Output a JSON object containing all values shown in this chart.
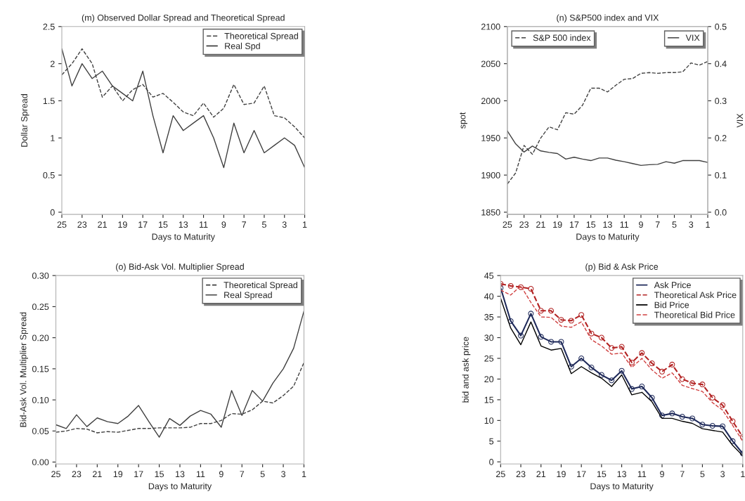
{
  "chart_data": [
    {
      "type": "line",
      "title": "(m) Observed Dollar Spread and Theoretical Spread",
      "xlabel": "Days to Maturity",
      "ylabel": "Dollar Spread",
      "x": [
        25,
        24,
        23,
        22,
        21,
        20,
        19,
        18,
        17,
        16,
        15,
        14,
        13,
        12,
        11,
        10,
        9,
        8,
        7,
        6,
        5,
        4,
        3,
        2,
        1
      ],
      "xlim": [
        25,
        1
      ],
      "xticks": [
        25,
        23,
        21,
        19,
        17,
        15,
        13,
        11,
        9,
        7,
        5,
        3,
        1
      ],
      "ylim": [
        -0.03,
        2.5
      ],
      "yticks": [
        0,
        0.5,
        1,
        1.5,
        2,
        2.5
      ],
      "legend": "top right",
      "grid": false,
      "series": [
        {
          "name": "Theoretical Spread",
          "color": "#404040",
          "line_style": "dashed",
          "values": [
            1.85,
            2.0,
            2.2,
            2.0,
            1.55,
            1.7,
            1.5,
            1.65,
            1.72,
            1.55,
            1.6,
            1.48,
            1.35,
            1.3,
            1.47,
            1.28,
            1.4,
            1.72,
            1.45,
            1.47,
            1.7,
            1.3,
            1.27,
            1.15,
            1.0
          ]
        },
        {
          "name": "Real Spd",
          "color": "#404040",
          "line_style": "solid",
          "values": [
            2.2,
            1.7,
            2.0,
            1.8,
            1.9,
            1.7,
            1.6,
            1.5,
            1.9,
            1.3,
            0.8,
            1.3,
            1.1,
            1.2,
            1.3,
            1.0,
            0.6,
            1.2,
            0.8,
            1.1,
            0.8,
            0.9,
            1.0,
            0.9,
            0.6
          ]
        }
      ]
    },
    {
      "type": "line",
      "title": "(n) S&P500 index and VIX",
      "xlabel": "Days to Maturity",
      "ylabel": "spot",
      "y2label": "VIX",
      "x": [
        25,
        24,
        23,
        22,
        21,
        20,
        19,
        18,
        17,
        16,
        15,
        14,
        13,
        12,
        11,
        10,
        9,
        8,
        7,
        6,
        5,
        4,
        3,
        2,
        1
      ],
      "xlim": [
        25,
        1
      ],
      "xticks": [
        25,
        23,
        21,
        19,
        17,
        15,
        13,
        11,
        9,
        7,
        5,
        3,
        1
      ],
      "ylim": [
        1847,
        2100
      ],
      "yticks": [
        1850,
        1900,
        1950,
        2000,
        2050,
        2100
      ],
      "y2lim": [
        -0.006,
        0.5
      ],
      "y2ticks": [
        {
          "value": 0,
          "label": "0.0"
        },
        {
          "value": 0.1,
          "label": "0.1"
        },
        {
          "value": 0.2,
          "label": "0.2"
        },
        {
          "value": 0.3,
          "label": "0.3"
        },
        {
          "value": 0.4,
          "label": "0.4"
        },
        {
          "value": 0.5,
          "label": "0.5"
        }
      ],
      "legend": "top",
      "grid": false,
      "series": [
        {
          "name": "S&P 500 index",
          "color": "#404040",
          "line_style": "dashed",
          "values": [
            1888,
            1903,
            1940,
            1928,
            1950,
            1965,
            1961,
            1984,
            1982,
            1994,
            2017,
            2017,
            2012,
            2021,
            2029,
            2030,
            2037,
            2038,
            2037,
            2038,
            2038,
            2039,
            2051,
            2048,
            2053
          ]
        },
        {
          "name": "VIX",
          "color": "#404040",
          "line_style": "solid",
          "axis": "y2",
          "values": [
            0.219,
            0.184,
            0.162,
            0.178,
            0.165,
            0.161,
            0.158,
            0.143,
            0.148,
            0.143,
            0.139,
            0.146,
            0.146,
            0.14,
            0.136,
            0.131,
            0.126,
            0.128,
            0.129,
            0.136,
            0.132,
            0.139,
            0.139,
            0.139,
            0.134
          ]
        }
      ]
    },
    {
      "type": "line",
      "title": "(o) Bid-Ask Vol. Multiplier Spread",
      "xlabel": "Days to Maturity",
      "ylabel": "Bid-Ask Vol. Multiplier Spread",
      "x": [
        25,
        24,
        23,
        22,
        21,
        20,
        19,
        18,
        17,
        16,
        15,
        14,
        13,
        12,
        11,
        10,
        9,
        8,
        7,
        6,
        5,
        4,
        3,
        2,
        1
      ],
      "xlim": [
        25,
        1
      ],
      "xticks": [
        25,
        23,
        21,
        19,
        17,
        15,
        13,
        11,
        9,
        7,
        5,
        3,
        1
      ],
      "ylim": [
        -0.003,
        0.3
      ],
      "yticks": [
        {
          "value": 0,
          "label": "0.00"
        },
        {
          "value": 0.05,
          "label": "0.05"
        },
        {
          "value": 0.1,
          "label": "0.10"
        },
        {
          "value": 0.15,
          "label": "0.15"
        },
        {
          "value": 0.2,
          "label": "0.20"
        },
        {
          "value": 0.25,
          "label": "0.25"
        },
        {
          "value": 0.3,
          "label": "0.30"
        }
      ],
      "legend": "top right",
      "grid": false,
      "series": [
        {
          "name": "Theoretical Spread",
          "color": "#404040",
          "line_style": "dashed",
          "values": [
            0.048,
            0.05,
            0.054,
            0.053,
            0.047,
            0.049,
            0.048,
            0.051,
            0.054,
            0.054,
            0.055,
            0.055,
            0.055,
            0.056,
            0.062,
            0.062,
            0.067,
            0.078,
            0.077,
            0.084,
            0.098,
            0.095,
            0.107,
            0.122,
            0.16
          ]
        },
        {
          "name": "Real Spread",
          "color": "#404040",
          "line_style": "solid",
          "values": [
            0.06,
            0.054,
            0.076,
            0.057,
            0.071,
            0.065,
            0.062,
            0.074,
            0.091,
            0.065,
            0.04,
            0.07,
            0.059,
            0.074,
            0.083,
            0.077,
            0.056,
            0.115,
            0.075,
            0.115,
            0.098,
            0.127,
            0.15,
            0.183,
            0.243
          ]
        }
      ]
    },
    {
      "type": "line",
      "title": "(p) Bid & Ask Price",
      "xlabel": "Days to Maturity",
      "ylabel": "bid and ask price",
      "x": [
        25,
        24,
        23,
        22,
        21,
        20,
        19,
        18,
        17,
        16,
        15,
        14,
        13,
        12,
        11,
        10,
        9,
        8,
        7,
        6,
        5,
        4,
        3,
        2,
        1
      ],
      "xlim": [
        25,
        1
      ],
      "xticks": [
        25,
        23,
        21,
        19,
        17,
        15,
        13,
        11,
        9,
        7,
        5,
        3,
        1
      ],
      "ylim": [
        -0.5,
        45
      ],
      "yticks": [
        0,
        5,
        10,
        15,
        20,
        25,
        30,
        35,
        40,
        45
      ],
      "legend": "top right",
      "grid": false,
      "series": [
        {
          "name": "Ask Price",
          "color": "#1f2a5a",
          "line_style": "solid",
          "marker": "circle",
          "values": [
            42,
            34,
            30.5,
            35.8,
            30.2,
            29,
            29,
            23,
            25,
            22.8,
            21,
            19.7,
            22,
            17.6,
            18.2,
            15.5,
            11.2,
            11.7,
            10.9,
            10.5,
            9,
            8.7,
            8.6,
            5,
            2
          ]
        },
        {
          "name": "Theoretical Ask Price",
          "color": "#b22222",
          "line_style": "dashed",
          "marker": "circle",
          "values": [
            43,
            42.5,
            42.2,
            41.8,
            36.5,
            36.5,
            34.3,
            34.1,
            35.5,
            31,
            30,
            27.5,
            27.8,
            24,
            26.3,
            23.8,
            21.8,
            23.5,
            20,
            19,
            18.7,
            15.5,
            13.7,
            9.8,
            6
          ]
        },
        {
          "name": "Bid Price",
          "color": "#000000",
          "line_style": "solid",
          "values": [
            39.5,
            32.3,
            28.3,
            33.8,
            28,
            27,
            27.4,
            21.3,
            23,
            21.5,
            20.2,
            18.2,
            21,
            16.2,
            16.8,
            14.5,
            10.5,
            10.5,
            9.8,
            9.3,
            8,
            7.6,
            7.2,
            4,
            1.5
          ]
        },
        {
          "name": "Theoretical Bid Price",
          "color": "#d04040",
          "line_style": "dashed",
          "values": [
            41.5,
            40.3,
            42.5,
            38.5,
            35,
            34.9,
            32.8,
            32.5,
            33.8,
            29.5,
            28,
            26,
            26.3,
            22.8,
            25,
            22.2,
            20.2,
            21.5,
            18.5,
            17.7,
            17,
            14.3,
            12.5,
            8.8,
            5
          ]
        }
      ]
    }
  ]
}
